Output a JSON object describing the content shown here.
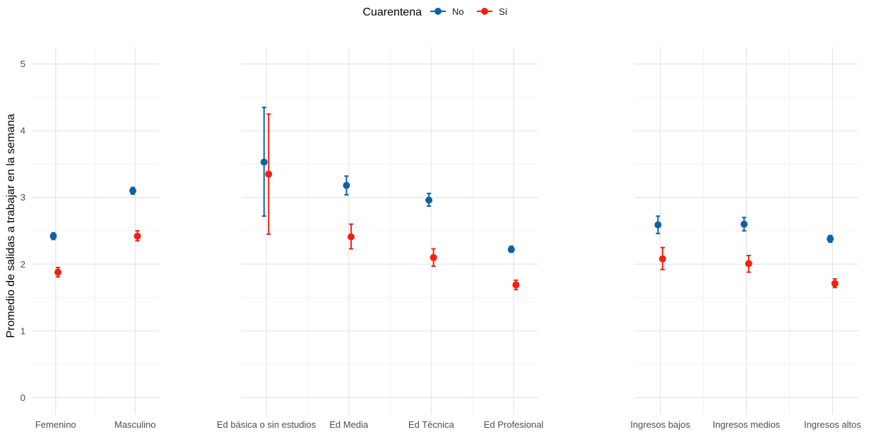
{
  "chart_data": {
    "type": "scatter",
    "style": "point-range with error bars, faceted",
    "ylabel": "Promedio de salidas a trabajar en la semana",
    "ylim": [
      -0.25,
      5.25
    ],
    "y_ticks": [
      0,
      1,
      2,
      3,
      4,
      5
    ],
    "grid": true,
    "legend": {
      "title": "Cuarentena",
      "placement": "top",
      "entries": [
        {
          "name": "No",
          "color": "#1360a6"
        },
        {
          "name": "Sí",
          "color": "#f5200f"
        }
      ]
    },
    "panels": [
      {
        "categories": [
          "Femenino",
          "Masculino"
        ],
        "series": [
          {
            "name": "No",
            "values": [
              2.42,
              3.1
            ],
            "lower": [
              2.37,
              3.05
            ],
            "upper": [
              2.47,
              3.15
            ]
          },
          {
            "name": "Sí",
            "values": [
              1.88,
              2.42
            ],
            "lower": [
              1.81,
              2.35
            ],
            "upper": [
              1.95,
              2.5
            ]
          }
        ]
      },
      {
        "categories": [
          "Ed básica o sin estudios",
          "Ed Media",
          "Ed Técnica",
          "Ed Profesional"
        ],
        "series": [
          {
            "name": "No",
            "values": [
              3.53,
              3.18,
              2.96,
              2.22
            ],
            "lower": [
              2.72,
              3.04,
              2.87,
              2.18
            ],
            "upper": [
              4.35,
              3.32,
              3.06,
              2.27
            ]
          },
          {
            "name": "Sí",
            "values": [
              3.35,
              2.41,
              2.1,
              1.69
            ],
            "lower": [
              2.45,
              2.23,
              1.97,
              1.62
            ],
            "upper": [
              4.25,
              2.6,
              2.23,
              1.76
            ]
          }
        ]
      },
      {
        "categories": [
          "Ingresos bajos",
          "Ingresos medios",
          "Ingresos altos"
        ],
        "series": [
          {
            "name": "No",
            "values": [
              2.59,
              2.6,
              2.38
            ],
            "lower": [
              2.46,
              2.5,
              2.33
            ],
            "upper": [
              2.72,
              2.7,
              2.43
            ]
          },
          {
            "name": "Sí",
            "values": [
              2.08,
              2.01,
              1.71
            ],
            "lower": [
              1.92,
              1.88,
              1.65
            ],
            "upper": [
              2.25,
              2.13,
              1.78
            ]
          }
        ]
      }
    ]
  }
}
